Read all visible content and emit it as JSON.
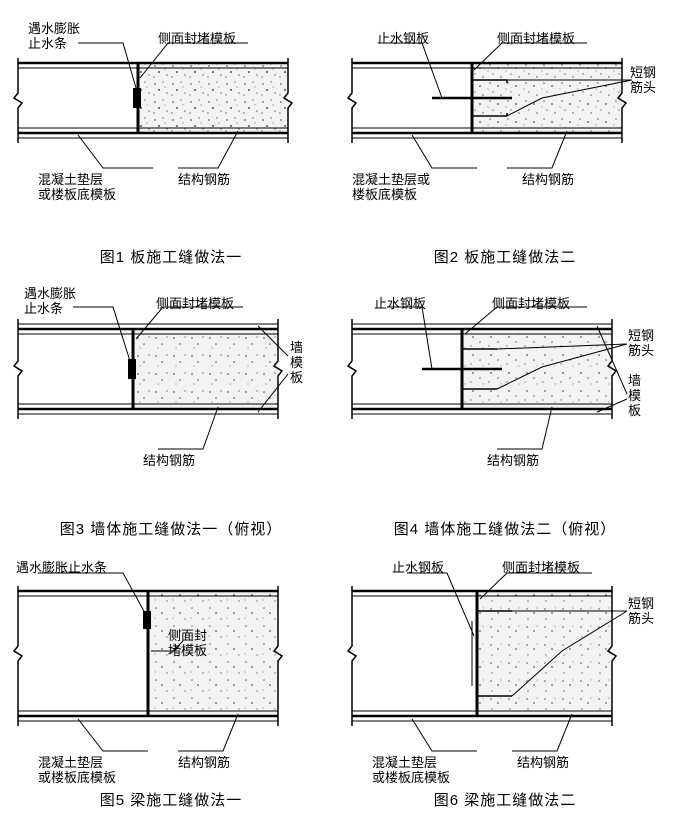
{
  "common": {
    "background": "#ffffff",
    "line_color": "#000000",
    "line_width_heavy": 3,
    "line_width_med": 1.5,
    "line_width_thin": 1,
    "label_fontsize": 13,
    "caption_fontsize": 15,
    "concrete_dot_color": "#888888",
    "concrete_fill": "#f2f2f2"
  },
  "labels": {
    "expansion_strip": "遇水膨胀\n止水条",
    "expansion_strip_oneline": "遇水膨胀止水条",
    "side_formwork": "侧面封堵模板",
    "side_formwork_2line": "侧面封\n堵模板",
    "waterstop_plate": "止水钢板",
    "short_rebar": "短钢\n筋头",
    "wall_formwork": "墙\n模\n板",
    "bedding": "混凝土垫层\n或楼板底模板",
    "bedding_or": "混凝土垫层或\n楼板底模板",
    "struct_rebar": "结构钢筋"
  },
  "captions": {
    "f1": "图1  板施工缝做法一",
    "f2": "图2  板施工缝做法二",
    "f3": "图3  墙体施工缝做法一（俯视）",
    "f4": "图4  墙体施工缝做法二（俯视）",
    "f5": "图5  梁施工缝做法一",
    "f6": "图6 梁施工缝做法二"
  }
}
